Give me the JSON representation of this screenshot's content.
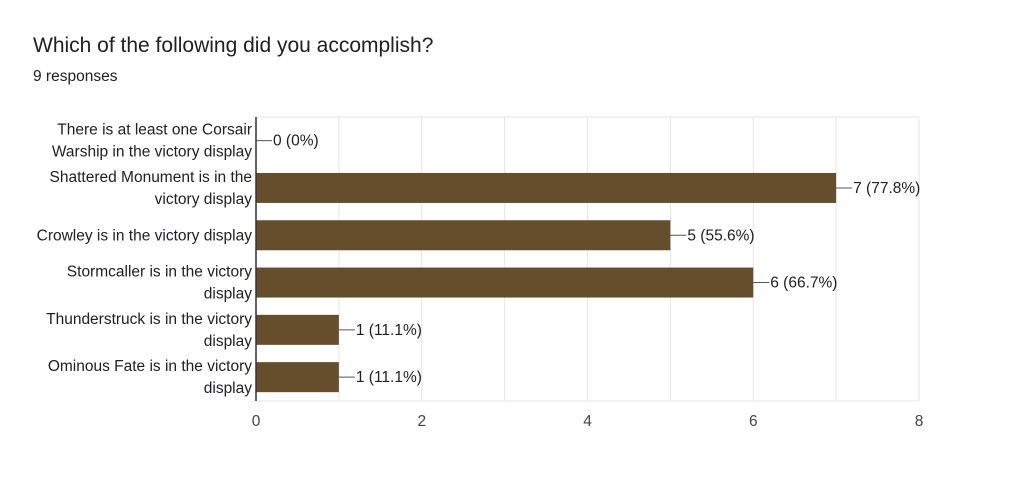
{
  "title": "Which of the following did you accomplish?",
  "subtitle": "9 responses",
  "colors": {
    "bar": "#664e2c",
    "grid": "#e6e6e6",
    "axis": "#333333"
  },
  "chart_data": {
    "type": "bar",
    "orientation": "horizontal",
    "categories": [
      "There is at least one Corsair Warship in the victory display",
      "Shattered Monument is in the victory display",
      "Crowley is in the victory display",
      "Stormcaller is in the victory display",
      "Thunderstruck is in the victory display",
      "Ominous Fate is in the victory display"
    ],
    "values": [
      0,
      7,
      5,
      6,
      1,
      1
    ],
    "value_labels": [
      "0 (0%)",
      "7 (77.8%)",
      "5 (55.6%)",
      "6 (66.7%)",
      "1 (11.1%)",
      "1 (11.1%)"
    ],
    "xlim": [
      0,
      8
    ],
    "xticks": [
      0,
      2,
      4,
      6,
      8
    ],
    "grid": true,
    "legend": "none"
  }
}
